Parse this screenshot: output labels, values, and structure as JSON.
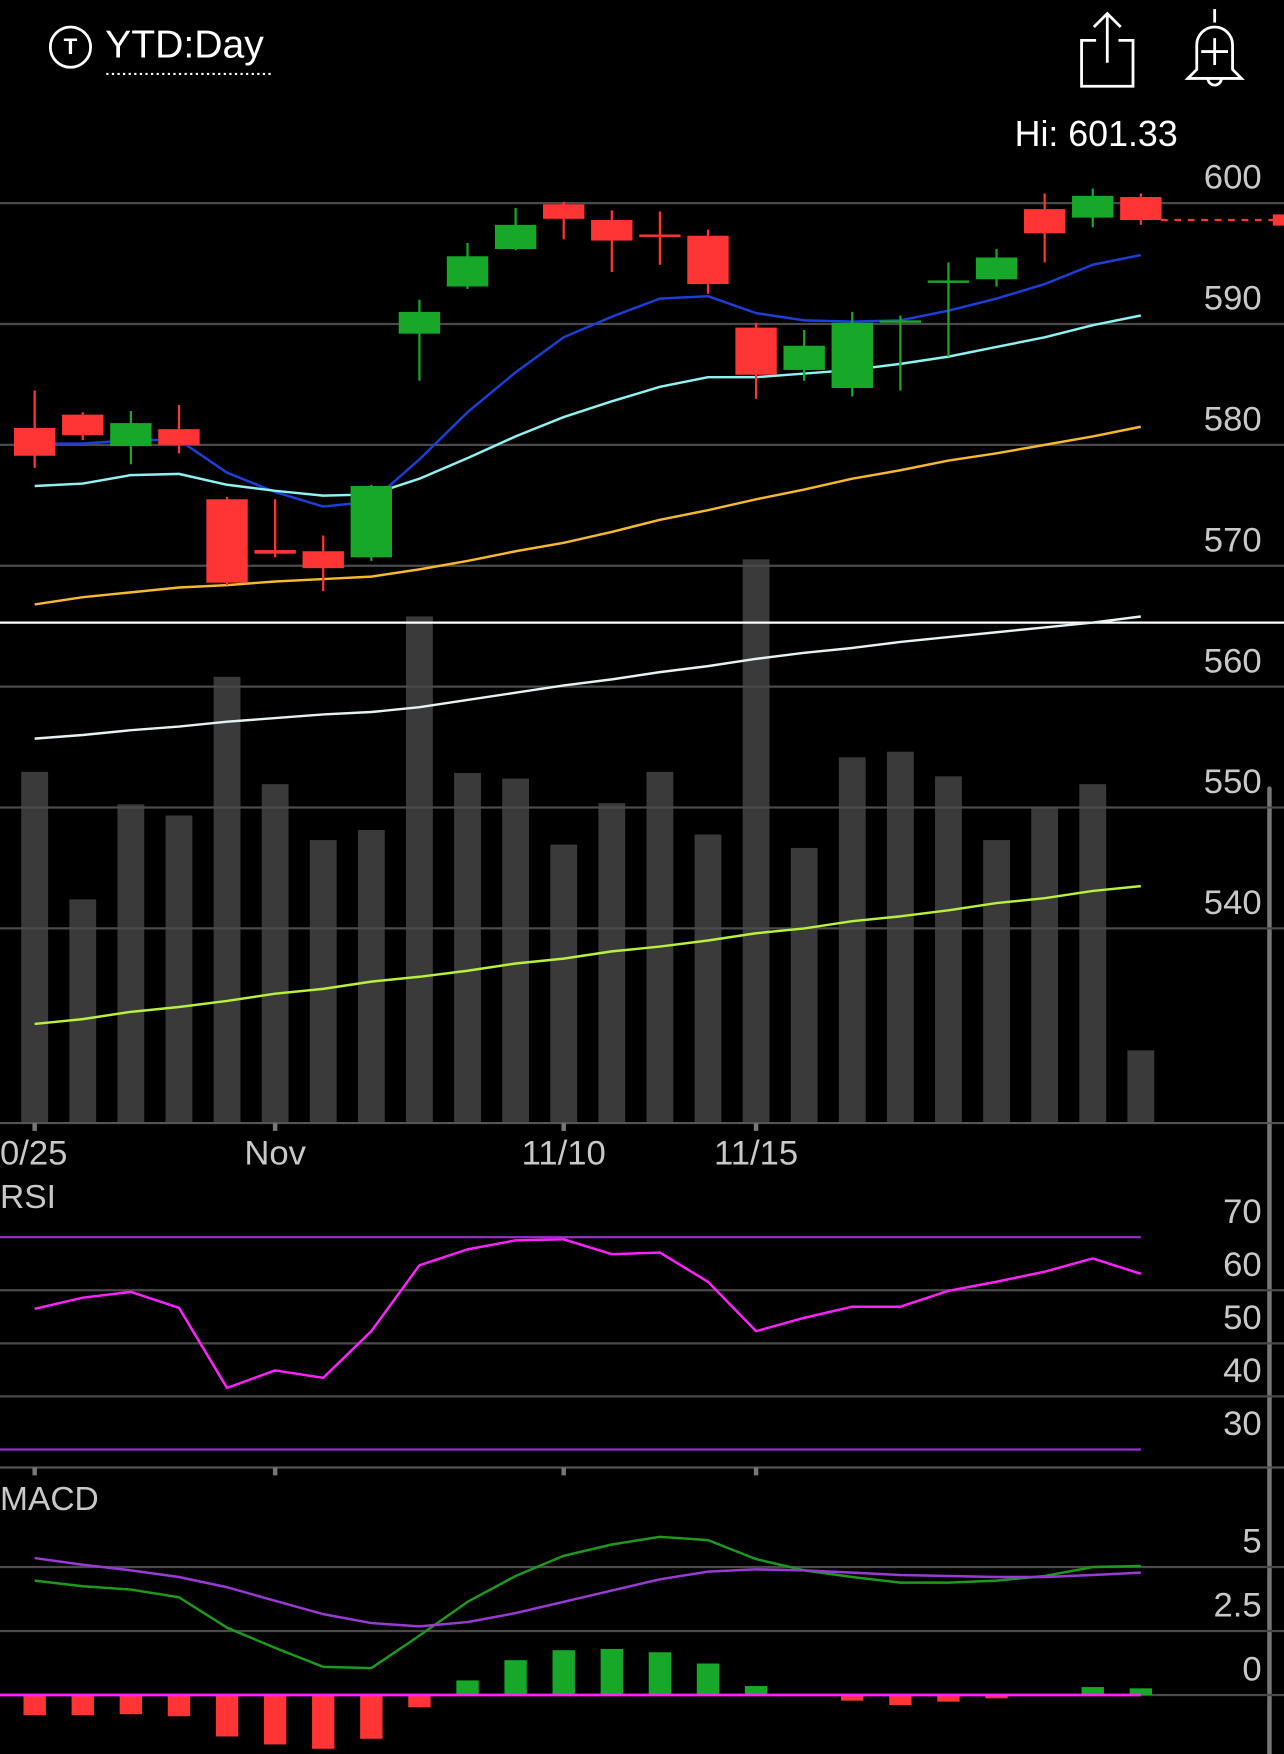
{
  "header": {
    "icon_letter": "T",
    "title": "YTD:Day",
    "high_label": "Hi: 601.33"
  },
  "chart_data": [
    {
      "type": "candlestick",
      "categories": [
        "0/25",
        null,
        null,
        null,
        null,
        "Nov",
        null,
        null,
        null,
        null,
        null,
        "11/10",
        null,
        null,
        null,
        "11/15",
        null,
        null,
        null,
        null,
        null,
        null,
        null,
        null
      ],
      "open": [
        581.4,
        582.5,
        579.9,
        581.3,
        575.5,
        571.3,
        571.2,
        570.7,
        589.2,
        593.1,
        596.2,
        599.9,
        598.6,
        597.4,
        597.3,
        589.7,
        586.2,
        584.7,
        590.1,
        593.4,
        593.7,
        599.5,
        598.8,
        600.5
      ],
      "high": [
        584.5,
        582.7,
        582.8,
        583.3,
        575.7,
        575.5,
        572.5,
        576.7,
        592.0,
        596.7,
        599.6,
        600.1,
        599.4,
        599.3,
        597.8,
        590.1,
        589.5,
        591.0,
        590.7,
        595.1,
        596.2,
        600.8,
        601.2,
        600.8
      ],
      "low": [
        578.1,
        580.4,
        578.4,
        579.3,
        568.4,
        570.7,
        567.9,
        570.4,
        585.3,
        592.9,
        596.1,
        597.0,
        594.3,
        594.9,
        592.5,
        583.8,
        585.3,
        584.0,
        584.5,
        587.3,
        593.1,
        595.1,
        598.0,
        598.2
      ],
      "close": [
        579.1,
        580.8,
        581.8,
        580.0,
        568.6,
        571.0,
        569.8,
        576.6,
        591.0,
        595.6,
        598.2,
        598.7,
        596.9,
        597.2,
        593.3,
        585.8,
        588.2,
        590.1,
        590.3,
        593.6,
        595.5,
        597.5,
        600.6,
        598.6
      ],
      "up_color": "#17a82a",
      "down_color": "#ff3535",
      "ylim": [
        523.9,
        608
      ],
      "yticks": [
        540,
        550,
        560,
        570,
        580,
        590,
        600
      ],
      "grid": true,
      "series": [
        {
          "color": "#1b3fd8",
          "values": [
            580.1,
            580.1,
            580.4,
            580.4,
            577.7,
            576.1,
            574.9,
            575.3,
            578.8,
            582.7,
            586.0,
            588.9,
            590.6,
            592.1,
            592.3,
            590.9,
            590.3,
            590.2,
            590.3,
            591.1,
            592.1,
            593.3,
            594.9,
            595.7
          ]
        },
        {
          "color": "#8ef2f2",
          "values": [
            576.6,
            576.8,
            577.5,
            577.6,
            576.7,
            576.2,
            575.8,
            575.9,
            577.2,
            578.9,
            580.7,
            582.3,
            583.6,
            584.8,
            585.6,
            585.6,
            585.9,
            586.2,
            586.7,
            587.3,
            588.1,
            588.9,
            589.9,
            590.7
          ]
        },
        {
          "color": "#f5b82e",
          "values": [
            566.8,
            567.4,
            567.8,
            568.2,
            568.4,
            568.7,
            568.9,
            569.1,
            569.7,
            570.4,
            571.2,
            571.9,
            572.8,
            573.8,
            574.6,
            575.5,
            576.3,
            577.2,
            577.9,
            578.7,
            579.3,
            580.0,
            580.7,
            581.5
          ]
        },
        {
          "color": "#e6f2f2",
          "values": [
            555.7,
            556.0,
            556.4,
            556.7,
            557.1,
            557.4,
            557.7,
            557.9,
            558.3,
            558.9,
            559.5,
            560.1,
            560.6,
            561.2,
            561.7,
            562.3,
            562.8,
            563.2,
            563.7,
            564.1,
            564.5,
            564.9,
            565.3,
            565.8
          ]
        },
        {
          "color": "#b8f03c",
          "values": [
            532.1,
            532.5,
            533.1,
            533.5,
            534.0,
            534.6,
            535.0,
            535.6,
            536.0,
            536.5,
            537.1,
            537.5,
            538.1,
            538.5,
            539.0,
            539.6,
            540.0,
            540.6,
            541.0,
            541.5,
            542.1,
            542.5,
            543.1,
            543.5
          ]
        }
      ],
      "hline": {
        "value": 565.3,
        "color": "#ffffff"
      },
      "volume": {
        "color": "#3a3a3a",
        "lim": [
          0,
          909
        ],
        "values": [
          314,
          200,
          285,
          275,
          399,
          303,
          253,
          262,
          453,
          313,
          308,
          249,
          286,
          314,
          258,
          504,
          246,
          327,
          332,
          310,
          253,
          283,
          303,
          65
        ]
      }
    },
    {
      "type": "line",
      "title": "RSI",
      "ylim": [
        26.6,
        79.7
      ],
      "yticks": [
        30,
        40,
        50,
        60,
        70
      ],
      "grid": true,
      "levels": [
        30,
        70
      ],
      "level_color": "#9a2fd6",
      "series": [
        {
          "color": "#ff22ff",
          "values": [
            56.5,
            58.6,
            59.7,
            56.7,
            41.6,
            44.9,
            43.5,
            52.3,
            64.7,
            67.7,
            69.4,
            69.6,
            66.8,
            67.1,
            61.6,
            52.3,
            54.8,
            56.9,
            56.9,
            59.9,
            61.6,
            63.5,
            66.0,
            63.1
          ]
        }
      ]
    },
    {
      "type": "macd",
      "title": "MACD",
      "ylim": [
        -2.3,
        8.1
      ],
      "yticks": [
        0,
        2.5,
        5
      ],
      "grid": true,
      "zero_color": "#ff22ff",
      "series": [
        {
          "color": "#1d9a1d",
          "values": [
            4.47,
            4.25,
            4.12,
            3.82,
            2.63,
            1.84,
            1.1,
            1.05,
            2.32,
            3.64,
            4.65,
            5.44,
            5.88,
            6.18,
            6.05,
            5.31,
            4.87,
            4.61,
            4.39,
            4.39,
            4.47,
            4.65,
            5.0,
            5.04
          ]
        },
        {
          "color": "#9a3ad6",
          "values": [
            5.35,
            5.09,
            4.87,
            4.61,
            4.21,
            3.68,
            3.16,
            2.81,
            2.68,
            2.85,
            3.2,
            3.64,
            4.08,
            4.52,
            4.82,
            4.91,
            4.87,
            4.78,
            4.69,
            4.65,
            4.61,
            4.61,
            4.69,
            4.78
          ]
        }
      ],
      "histogram": {
        "up_color": "#17a82a",
        "down_color": "#ff3535",
        "values": [
          -0.79,
          -0.79,
          -0.75,
          -0.83,
          -1.62,
          -1.93,
          -2.1,
          -1.71,
          -0.48,
          0.57,
          1.36,
          1.75,
          1.8,
          1.67,
          1.23,
          0.35,
          0,
          -0.22,
          -0.39,
          -0.26,
          -0.13,
          0,
          0.31,
          0.26
        ]
      }
    }
  ]
}
